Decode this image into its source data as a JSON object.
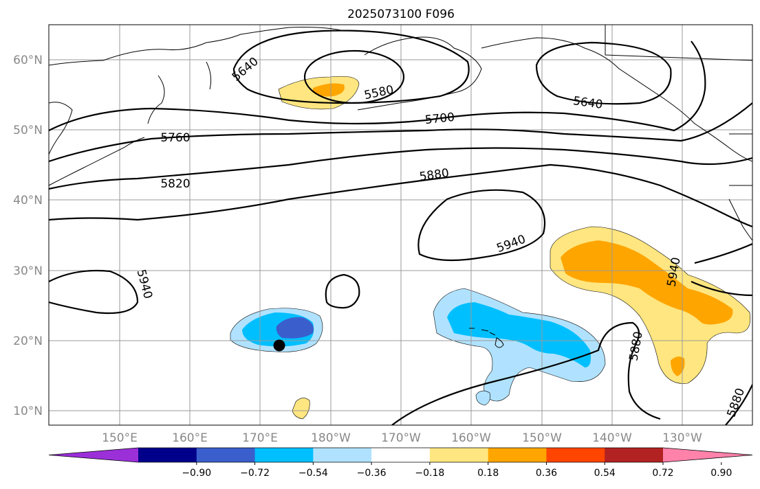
{
  "title": "2025073100 F096",
  "lat_labels": [
    "60°N",
    "50°N",
    "40°N",
    "30°N",
    "20°N",
    "10°N"
  ],
  "lon_labels": [
    "150°E",
    "160°E",
    "170°E",
    "180°W",
    "170°W",
    "160°W",
    "150°W",
    "140°W",
    "130°W"
  ],
  "contour_labels": [
    "5580",
    "5640",
    "5640",
    "5700",
    "5760",
    "5820",
    "5880",
    "5880",
    "5880",
    "5940",
    "5940",
    "5940"
  ],
  "colorbar": {
    "ticks": [
      "−0.90",
      "−0.72",
      "−0.54",
      "−0.36",
      "−0.18",
      "0.18",
      "0.36",
      "0.54",
      "0.72",
      "0.90"
    ],
    "colors": [
      "#9b30d9",
      "#00008b",
      "#3a5fcd",
      "#00bfff",
      "#b0e2ff",
      "#ffffff",
      "#ffe680",
      "#ffa500",
      "#ff4500",
      "#b22222",
      "#ff82ab"
    ]
  }
}
